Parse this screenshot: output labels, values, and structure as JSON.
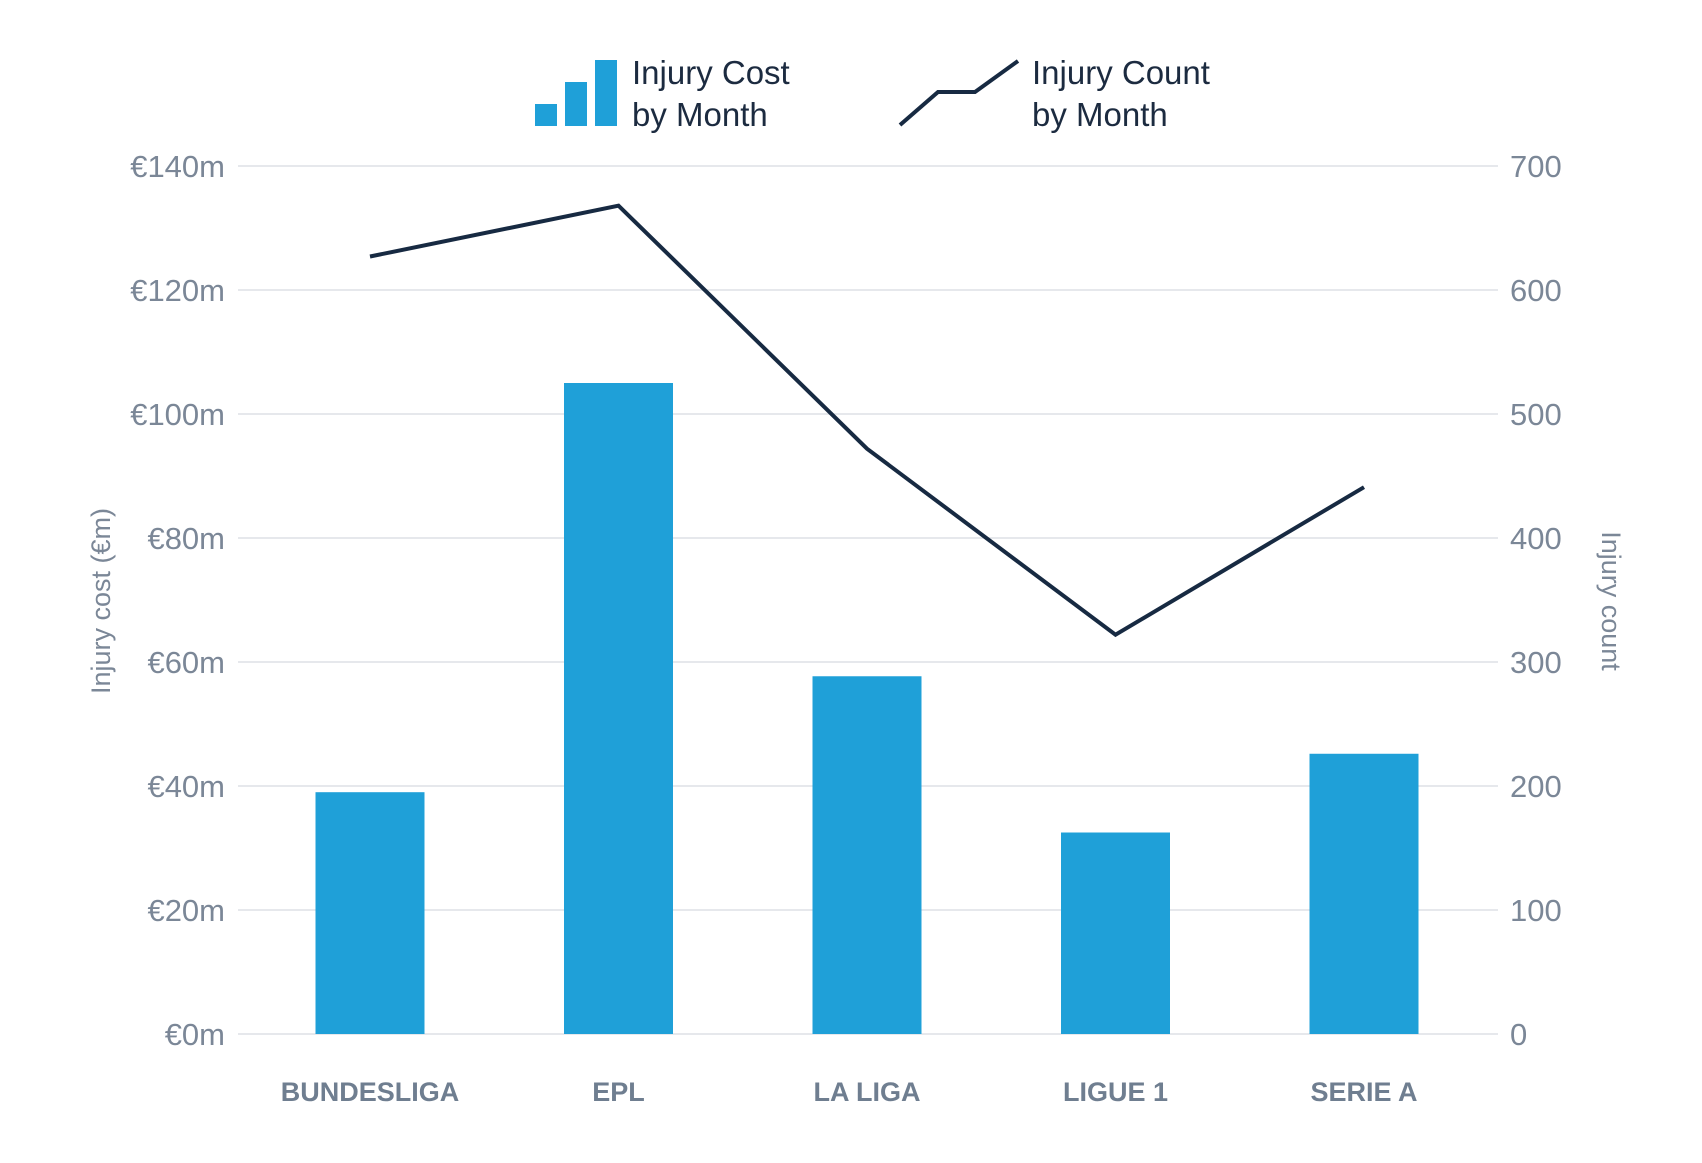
{
  "colors": {
    "bar": "#1fa0d8",
    "line": "#172a42",
    "grid": "#dde1e6",
    "tick": "#7b8797"
  },
  "legend": {
    "bars": {
      "line1": "Injury Cost",
      "line2": "by Month",
      "icon": "bar-chart-icon"
    },
    "line": {
      "line1": "Injury Count",
      "line2": "by Month",
      "icon": "line-chart-icon"
    }
  },
  "chart_data": {
    "type": "bar",
    "title": "",
    "categories": [
      "BUNDESLIGA",
      "EPL",
      "LA LIGA",
      "LIGUE 1",
      "SERIE A"
    ],
    "series": [
      {
        "name": "Injury Cost by Month",
        "kind": "bar",
        "axis": "left",
        "values": [
          39,
          105,
          57.7,
          32.5,
          45.2
        ]
      },
      {
        "name": "Injury Count by Month",
        "kind": "line",
        "axis": "right",
        "values": [
          627,
          668,
          472,
          322,
          441
        ]
      }
    ],
    "ylabel": "Injury cost (€m)",
    "y2label": "Injury count",
    "ylim": [
      0,
      140
    ],
    "y2lim": [
      0,
      700
    ],
    "yticks": [
      "€0m",
      "€20m",
      "€40m",
      "€60m",
      "€80m",
      "€100m",
      "€120m",
      "€140m"
    ],
    "y2ticks": [
      "0",
      "100",
      "200",
      "300",
      "400",
      "500",
      "600",
      "700"
    ],
    "grid": true,
    "legend_position": "top-center"
  }
}
